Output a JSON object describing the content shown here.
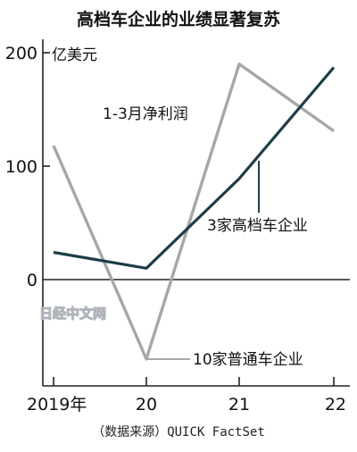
{
  "chart_data": {
    "type": "line",
    "title": "高档车企业的业绩显著复苏",
    "subtitle": "1-3月净利润",
    "unit_label": "亿美元",
    "categories": [
      "2019年",
      "20",
      "21",
      "22"
    ],
    "x_index": [
      0,
      1,
      2,
      3
    ],
    "ylim": [
      -100,
      200
    ],
    "y_ticks": [
      0,
      100,
      200
    ],
    "y_tick_labels": [
      "0",
      "100",
      "200"
    ],
    "grid": false,
    "series": [
      {
        "name": "3家高档车企业",
        "color": "#1e3d47",
        "values": [
          24,
          10,
          89,
          187
        ]
      },
      {
        "name": "10家普通车企业",
        "color": "#a7a7a7",
        "values": [
          118,
          -70,
          190,
          131
        ]
      }
    ],
    "source": "（数据来源）QUICK FactSet",
    "watermark": "日经中文网"
  }
}
